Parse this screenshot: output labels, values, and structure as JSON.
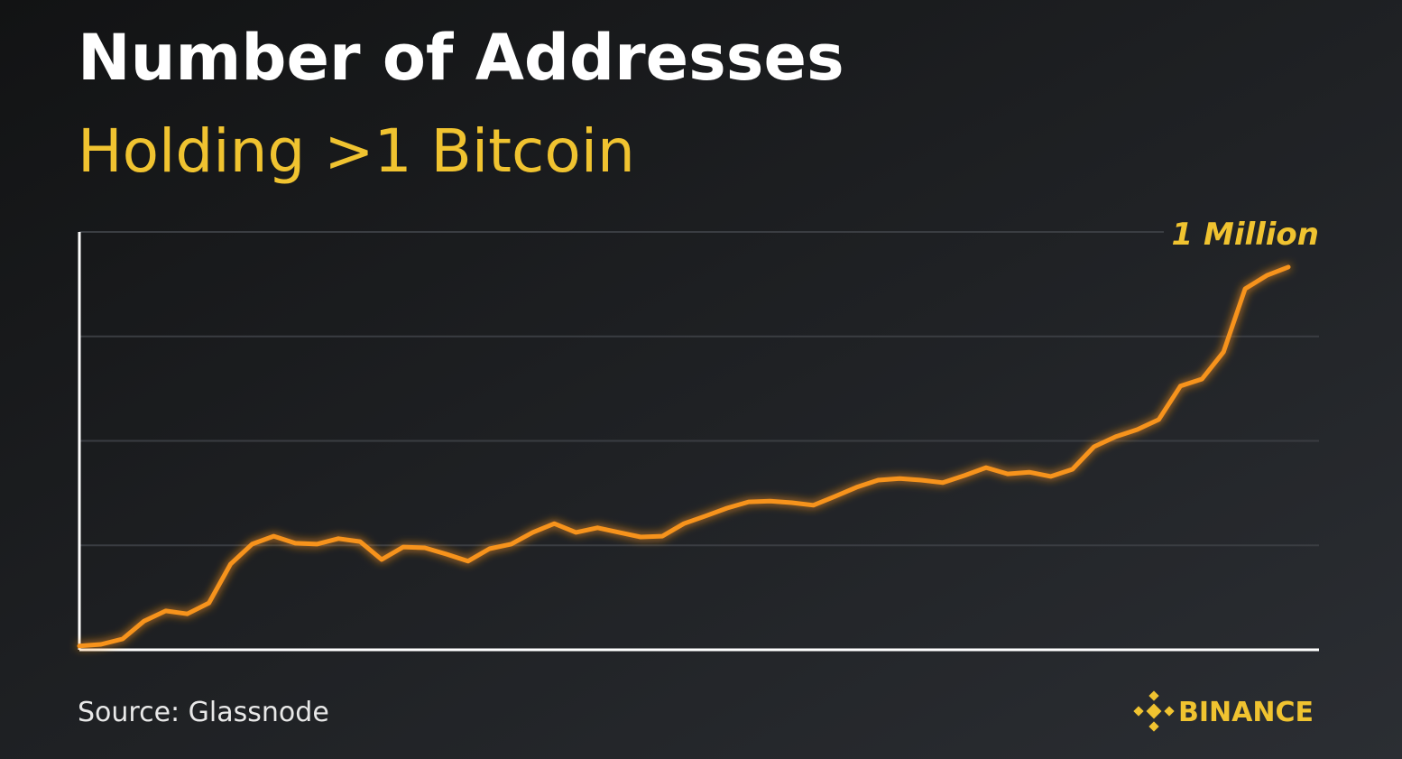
{
  "chart_data": {
    "type": "line",
    "title": "Number of Addresses",
    "subtitle": "Holding >1 Bitcoin",
    "annotation": "1 Million",
    "source": "Source: Glassnode",
    "brand": "BINANCE",
    "color": "#f7931a",
    "grid": true,
    "ylim": [
      0,
      1000000
    ],
    "yticks": [
      0,
      250000,
      500000,
      750000,
      1000000
    ],
    "values": [
      9000,
      13000,
      26000,
      69000,
      93000,
      86000,
      112000,
      205000,
      253000,
      272000,
      255000,
      253000,
      266000,
      259000,
      216000,
      246000,
      244000,
      229000,
      212000,
      242000,
      253000,
      281000,
      302000,
      281000,
      292000,
      281000,
      270000,
      272000,
      302000,
      320000,
      339000,
      354000,
      356000,
      352000,
      346000,
      367000,
      389000,
      406000,
      410000,
      406000,
      400000,
      417000,
      436000,
      421000,
      425000,
      415000,
      432000,
      486000,
      510000,
      527000,
      551000,
      631000,
      648000,
      713000,
      864000,
      896000,
      916000
    ]
  }
}
